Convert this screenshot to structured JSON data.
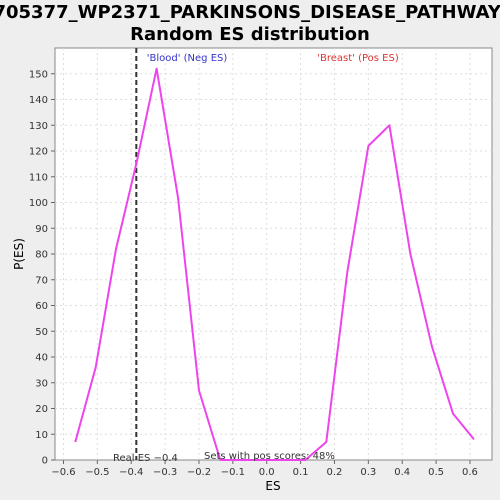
{
  "chart_data": {
    "type": "line",
    "title_line1": "705377_WP2371_PARKINSONS_DISEASE_PATHWAY:",
    "title_line2": "Random ES distribution",
    "xlabel": "ES",
    "ylabel": "P(ES)",
    "xlim": [
      -0.625,
      0.665
    ],
    "ylim": [
      0,
      160
    ],
    "x_ticks": [
      -0.6,
      -0.5,
      -0.4,
      -0.3,
      -0.2,
      -0.1,
      0.0,
      0.1,
      0.2,
      0.3,
      0.4,
      0.5,
      0.6
    ],
    "x_tick_labels": [
      "−0.6",
      "−0.5",
      "−0.4",
      "−0.3",
      "−0.2",
      "−0.1",
      "0.0",
      "0.1",
      "0.2",
      "0.3",
      "0.4",
      "0.5",
      "0.6"
    ],
    "y_ticks": [
      0,
      10,
      20,
      30,
      40,
      50,
      60,
      70,
      80,
      90,
      100,
      110,
      120,
      130,
      140,
      150
    ],
    "grid": true,
    "series": [
      {
        "color": "#ee44ee",
        "x": [
          -0.565,
          -0.505,
          -0.445,
          -0.385,
          -0.325,
          -0.262,
          -0.2,
          -0.137,
          0.0,
          0.114,
          0.176,
          0.238,
          0.3,
          0.362,
          0.424,
          0.488,
          0.55,
          0.612
        ],
        "y": [
          7,
          36,
          82,
          115,
          152,
          102,
          27,
          0,
          0,
          0,
          7,
          73,
          122,
          130,
          80,
          44,
          18,
          8
        ]
      }
    ],
    "real_es": -0.385,
    "annotations": {
      "neg_label": "'Blood' (Neg ES)",
      "neg_color": "#3333cc",
      "pos_label": "'Breast' (Pos ES)",
      "pos_color": "#dd3333",
      "real_es_label": "Real ES −0.4",
      "pos_scores_label": "Sets with pos scores: 48%"
    }
  }
}
